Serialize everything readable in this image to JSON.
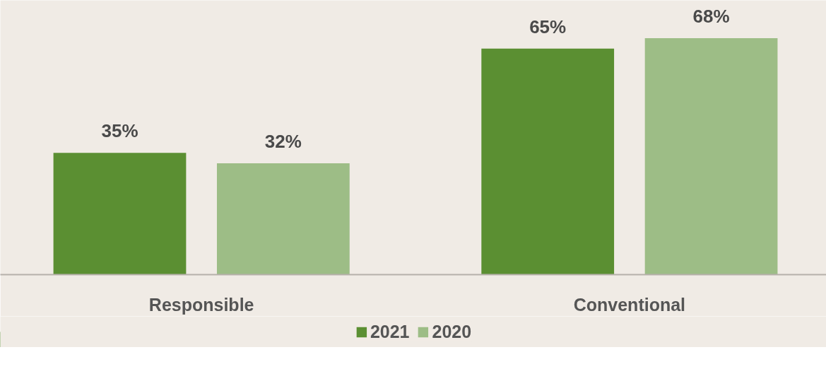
{
  "chart_data": {
    "type": "bar",
    "categories": [
      "Responsible",
      "Conventional"
    ],
    "series": [
      {
        "name": "2021",
        "color": "#5b8f32",
        "values": [
          35,
          65
        ],
        "value_labels": [
          "35%",
          "65%"
        ]
      },
      {
        "name": "2020",
        "color": "#9dbd86",
        "values": [
          32,
          68
        ],
        "value_labels": [
          "32%",
          "68%"
        ]
      }
    ],
    "legend": "bottom",
    "grid": false
  }
}
